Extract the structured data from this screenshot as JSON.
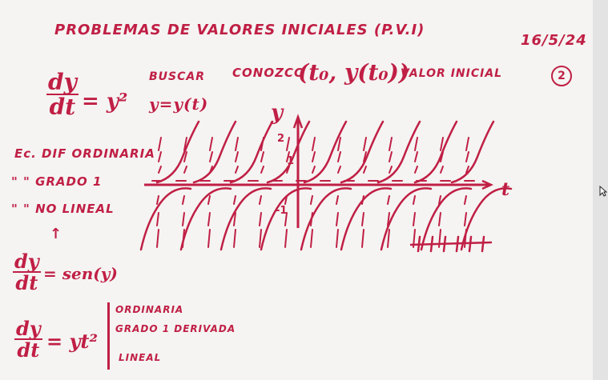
{
  "title": "PROBLEMAS DE VALORES INICIALES (P.V.I)",
  "date": "16/5/24",
  "page_number": "2",
  "eq1": {
    "num": "dy",
    "den": "dt",
    "rhs": "= y²"
  },
  "busca": {
    "line1": "BUSCAR",
    "line2": "y=y(t)"
  },
  "conozco": {
    "label": "CONOZCO",
    "pair": "(t₀, y(t₀))",
    "suffix": "VALOR INICIAL"
  },
  "classification": [
    "Ec. DIF ORDINARIA",
    "\" \" GRADO 1",
    "\" \" NO LINEAL"
  ],
  "eq2": {
    "num": "dy",
    "den": "dt",
    "rhs": "= sen(y)"
  },
  "eq3": {
    "num": "dy",
    "den": "dt",
    "rhs": "= yt²"
  },
  "eq3_props": [
    "ORDINARIA",
    "GRADO 1 DERIVADA",
    "LINEAL"
  ],
  "axes": {
    "y_label": "y",
    "t_label": "t",
    "tick_pos": "1",
    "tick_neg": "-1",
    "tick_mid": "2"
  },
  "colors": {
    "ink": "#c01f45",
    "board": "#f5f4f2"
  }
}
